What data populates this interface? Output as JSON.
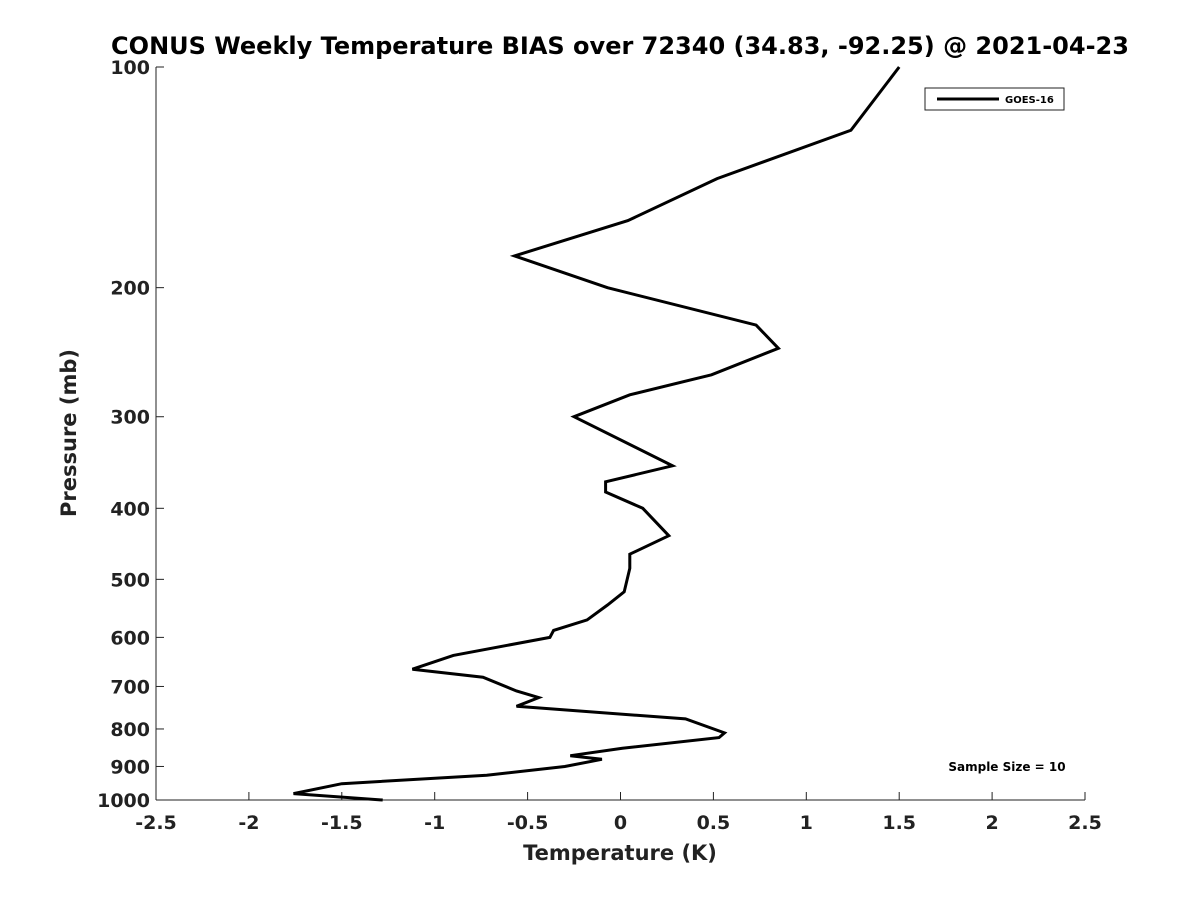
{
  "chart_data": {
    "type": "line",
    "title": "CONUS Weekly Temperature BIAS over 72340 (34.83, -92.25) @ 2021-04-23",
    "xlabel": "Temperature (K)",
    "ylabel": "Pressure (mb)",
    "xlim": [
      -2.5,
      2.5
    ],
    "ylim": [
      1000,
      100
    ],
    "yscale": "log",
    "yaxis_inverted": true,
    "x_ticks": [
      "-2.5",
      "-2",
      "-1.5",
      "-1",
      "-0.5",
      "0",
      "0.5",
      "1",
      "1.5",
      "2",
      "2.5"
    ],
    "y_ticks": [
      "100",
      "200",
      "300",
      "400",
      "500",
      "600",
      "700",
      "800",
      "900",
      "1000"
    ],
    "grid": false,
    "legend_position": "top-right",
    "annotation": "Sample Size = 10",
    "series": [
      {
        "name": "GOES-16",
        "color": "#000000",
        "points": [
          {
            "p": 100,
            "t": 1.5
          },
          {
            "p": 122,
            "t": 1.24
          },
          {
            "p": 142,
            "t": 0.52
          },
          {
            "p": 162,
            "t": 0.04
          },
          {
            "p": 181,
            "t": -0.57
          },
          {
            "p": 200,
            "t": -0.07
          },
          {
            "p": 225,
            "t": 0.73
          },
          {
            "p": 242,
            "t": 0.85
          },
          {
            "p": 263,
            "t": 0.49
          },
          {
            "p": 280,
            "t": 0.05
          },
          {
            "p": 300,
            "t": -0.25
          },
          {
            "p": 350,
            "t": 0.28
          },
          {
            "p": 368,
            "t": -0.08
          },
          {
            "p": 380,
            "t": -0.08
          },
          {
            "p": 400,
            "t": 0.12
          },
          {
            "p": 436,
            "t": 0.26
          },
          {
            "p": 462,
            "t": 0.05
          },
          {
            "p": 483,
            "t": 0.05
          },
          {
            "p": 520,
            "t": 0.02
          },
          {
            "p": 542,
            "t": -0.07
          },
          {
            "p": 568,
            "t": -0.18
          },
          {
            "p": 587,
            "t": -0.36
          },
          {
            "p": 600,
            "t": -0.38
          },
          {
            "p": 635,
            "t": -0.9
          },
          {
            "p": 663,
            "t": -1.12
          },
          {
            "p": 680,
            "t": -0.74
          },
          {
            "p": 710,
            "t": -0.56
          },
          {
            "p": 725,
            "t": -0.44
          },
          {
            "p": 745,
            "t": -0.56
          },
          {
            "p": 775,
            "t": 0.35
          },
          {
            "p": 810,
            "t": 0.56
          },
          {
            "p": 822,
            "t": 0.53
          },
          {
            "p": 850,
            "t": 0.01
          },
          {
            "p": 870,
            "t": -0.27
          },
          {
            "p": 880,
            "t": -0.1
          },
          {
            "p": 900,
            "t": -0.3
          },
          {
            "p": 925,
            "t": -0.72
          },
          {
            "p": 950,
            "t": -1.5
          },
          {
            "p": 980,
            "t": -1.76
          },
          {
            "p": 1000,
            "t": -1.28
          }
        ]
      }
    ]
  }
}
